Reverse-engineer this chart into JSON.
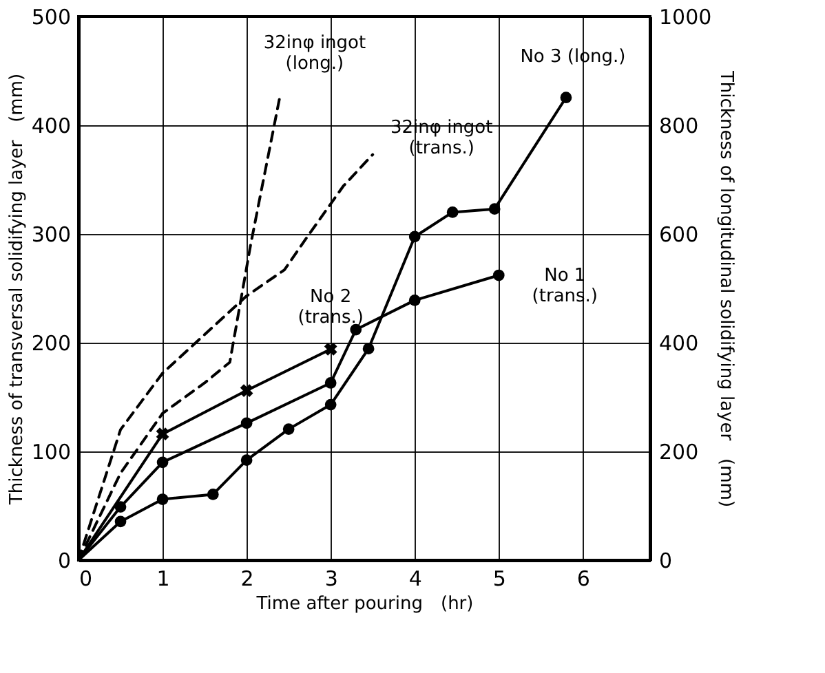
{
  "chart_data": {
    "type": "line",
    "xlabel": "Time after pouring　(hr)",
    "ylabel": "Thickness of transversal solidifying layer　(mm)",
    "y2label": "Thickness of longitudinal solidifying layer　(mm)",
    "xlim": [
      0,
      6.8
    ],
    "xticks": [
      0,
      1,
      2,
      3,
      4,
      5,
      6
    ],
    "ylim": [
      0,
      500
    ],
    "yticks": [
      0,
      100,
      200,
      300,
      400,
      500
    ],
    "y2lim": [
      0,
      1000
    ],
    "y2ticks": [
      0,
      200,
      400,
      600,
      800,
      1000
    ],
    "grid": true,
    "legend": false,
    "series": [
      {
        "name": "No 1\n(trans.)",
        "color": "#000000",
        "marker": "circle",
        "line_style": "solid",
        "x": [
          0,
          0.5,
          1,
          2,
          3,
          3.3,
          4,
          5
        ],
        "values": [
          0,
          49,
          90,
          126,
          163,
          212,
          239,
          262
        ]
      },
      {
        "name": "No 2\n(trans.)",
        "color": "#000000",
        "marker": "cross",
        "line_style": "solid",
        "x": [
          0,
          1,
          2,
          3
        ],
        "values": [
          0,
          116,
          156,
          194
        ]
      },
      {
        "name": "No 3 (long.)",
        "color": "#000000",
        "marker": "circle",
        "line_style": "solid",
        "axis": "y2",
        "x": [
          0,
          0.5,
          1,
          1.6,
          2,
          2.5,
          3,
          3.45,
          4,
          4.45,
          4.95,
          5.8
        ],
        "values": [
          0,
          71,
          112,
          121,
          184,
          241,
          286,
          389,
          595,
          640,
          646,
          851
        ]
      },
      {
        "name": "32inφ ingot\n(trans.)",
        "color": "#000000",
        "marker": "none",
        "line_style": "dashed",
        "x": [
          0,
          0.5,
          1,
          2,
          2.45,
          2.7,
          3.15,
          3.5
        ],
        "values": [
          0,
          120,
          172,
          243,
          267,
          295,
          344,
          373
        ]
      },
      {
        "name": "32inφ ingot\n(long.)",
        "color": "#000000",
        "marker": "none",
        "line_style": "dashed",
        "axis": "y2",
        "x": [
          0,
          0.5,
          1,
          1.5,
          1.8,
          2.05,
          2.4
        ],
        "values": [
          0,
          160,
          270,
          326,
          364,
          582,
          856
        ]
      }
    ]
  }
}
